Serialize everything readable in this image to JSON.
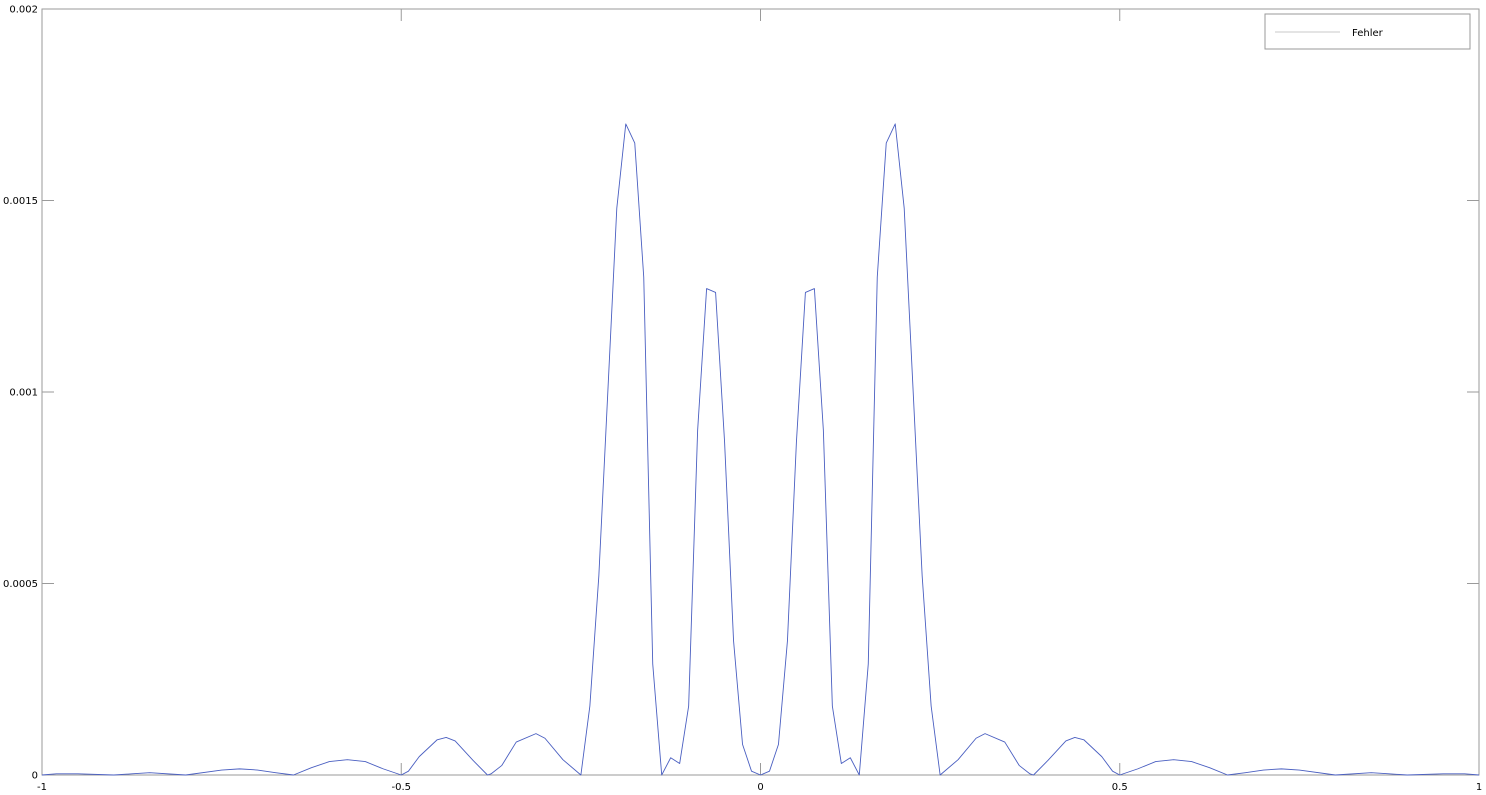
{
  "chart_data": {
    "type": "line",
    "title": "",
    "xlabel": "",
    "ylabel": "",
    "xlim": [
      -1,
      1
    ],
    "ylim": [
      0,
      0.002
    ],
    "grid": false,
    "legend_position": "top-right",
    "x_ticks": [
      -1,
      -0.5,
      0,
      0.5,
      1
    ],
    "x_tick_labels": [
      "-1",
      "-0.5",
      "0",
      "0.5",
      "1"
    ],
    "y_ticks": [
      0,
      0.0005,
      0.001,
      0.0015,
      0.002
    ],
    "y_tick_labels": [
      "0",
      "0.0005",
      "0.001",
      "0.0015",
      "0.002"
    ],
    "series": [
      {
        "name": "Fehler",
        "color": "#4a5fc1",
        "x": [
          -1,
          -0.98,
          -0.95,
          -0.9,
          -0.875,
          -0.85,
          -0.8,
          -0.75,
          -0.725,
          -0.7,
          -0.675,
          -0.65,
          -0.625,
          -0.6,
          -0.575,
          -0.55,
          -0.525,
          -0.5,
          -0.49,
          -0.475,
          -0.45,
          -0.4375,
          -0.425,
          -0.4,
          -0.38,
          -0.375,
          -0.36,
          -0.34,
          -0.3125,
          -0.3,
          -0.275,
          -0.25,
          -0.2375,
          -0.225,
          -0.2,
          -0.1875,
          -0.175,
          -0.1625,
          -0.15,
          -0.1375,
          -0.125,
          -0.1125,
          -0.1,
          -0.0875,
          -0.075,
          -0.0625,
          -0.05,
          -0.0375,
          -0.025,
          -0.0125,
          0,
          0.0125,
          0.025,
          0.0375,
          0.05,
          0.0625,
          0.075,
          0.0875,
          0.1,
          0.1125,
          0.125,
          0.1375,
          0.15,
          0.1625,
          0.175,
          0.1875,
          0.2,
          0.225,
          0.2375,
          0.25,
          0.275,
          0.3,
          0.3125,
          0.34,
          0.36,
          0.375,
          0.38,
          0.4,
          0.425,
          0.4375,
          0.45,
          0.475,
          0.49,
          0.5,
          0.525,
          0.55,
          0.575,
          0.6,
          0.625,
          0.65,
          0.675,
          0.7,
          0.725,
          0.75,
          0.8,
          0.85,
          0.875,
          0.9,
          0.95,
          0.98,
          1
        ],
        "values": [
          0,
          3e-06,
          3e-06,
          0,
          3e-06,
          6e-06,
          0,
          1.3e-05,
          1.6e-05,
          1.3e-05,
          6e-06,
          0,
          1.9e-05,
          3.5e-05,
          4e-05,
          3.5e-05,
          1.6e-05,
          0,
          1e-05,
          4.8e-05,
          9.2e-05,
          9.8e-05,
          8.9e-05,
          3.8e-05,
          0,
          3e-06,
          2.5e-05,
          8.6e-05,
          0.000108,
          9.6e-05,
          4e-05,
          0,
          0.00018,
          0.00052,
          0.00148,
          0.0017,
          0.00165,
          0.0013,
          0.00029,
          0,
          4.5e-05,
          3e-05,
          0.00018,
          0.0009,
          0.00127,
          0.00126,
          0.00087,
          0.00035,
          8e-05,
          1e-05,
          0,
          1e-05,
          8e-05,
          0.00035,
          0.00087,
          0.00126,
          0.00127,
          0.0009,
          0.00018,
          3e-05,
          4.5e-05,
          0,
          0.00029,
          0.0013,
          0.00165,
          0.0017,
          0.00148,
          0.00052,
          0.00018,
          0,
          4e-05,
          9.6e-05,
          0.000108,
          8.6e-05,
          2.5e-05,
          3e-06,
          0,
          3.8e-05,
          8.9e-05,
          9.8e-05,
          9.2e-05,
          4.8e-05,
          1e-05,
          0,
          1.6e-05,
          3.5e-05,
          4e-05,
          3.5e-05,
          1.9e-05,
          0,
          6e-06,
          1.3e-05,
          1.6e-05,
          1.3e-05,
          0,
          6e-06,
          3e-06,
          0,
          3e-06,
          3e-06,
          0
        ]
      }
    ]
  }
}
